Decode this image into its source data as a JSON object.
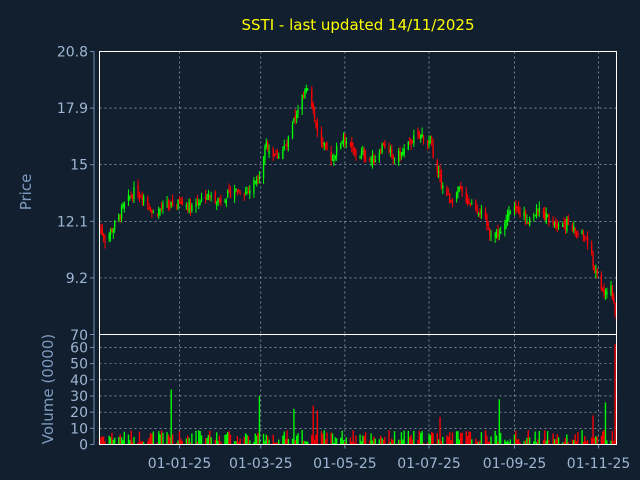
{
  "chart_data": [
    {
      "type": "candlestick",
      "title": "SSTI - last updated 14/11/2025",
      "xlabel": "",
      "ylabel": "Price",
      "ylim": [
        6.3,
        20.8
      ],
      "yticks": [
        6.3,
        9.2,
        12.1,
        15,
        17.9,
        20.8
      ],
      "ytick_labels": [
        "",
        "9.2",
        "12.1",
        "15",
        "17.9",
        "20.8"
      ],
      "xlim": [
        "2024-11-04",
        "2025-11-14"
      ],
      "xticks": [
        "2025-01-01",
        "2025-03-01",
        "2025-05-01",
        "2025-07-01",
        "2025-09-01",
        "2025-11-01"
      ],
      "xtick_labels": [
        "01-01-25",
        "01-03-25",
        "01-05-25",
        "01-07-25",
        "01-09-25",
        "01-11-25"
      ],
      "grid": true,
      "colors": {
        "up": "#00ff00",
        "down": "#ff0000",
        "grid": "#b8c8dc",
        "frame": "#ffffff",
        "title": "#ffff00",
        "axis_text": "#7f9cc0"
      },
      "close_anchors": [
        [
          "2024-11-04",
          11.8
        ],
        [
          "2024-11-08",
          11.2
        ],
        [
          "2024-11-15",
          11.9
        ],
        [
          "2024-11-22",
          12.9
        ],
        [
          "2024-11-29",
          13.6
        ],
        [
          "2024-12-06",
          13.4
        ],
        [
          "2024-12-13",
          12.5
        ],
        [
          "2024-12-20",
          12.8
        ],
        [
          "2025-01-01",
          13.0
        ],
        [
          "2025-01-10",
          12.9
        ],
        [
          "2025-01-20",
          13.4
        ],
        [
          "2025-01-31",
          13.2
        ],
        [
          "2025-02-10",
          13.7
        ],
        [
          "2025-02-20",
          13.6
        ],
        [
          "2025-02-28",
          14.6
        ],
        [
          "2025-03-05",
          16.0
        ],
        [
          "2025-03-12",
          15.4
        ],
        [
          "2025-03-20",
          16.0
        ],
        [
          "2025-03-28",
          17.9
        ],
        [
          "2025-04-03",
          19.1
        ],
        [
          "2025-04-09",
          17.3
        ],
        [
          "2025-04-15",
          16.0
        ],
        [
          "2025-04-22",
          15.3
        ],
        [
          "2025-04-30",
          16.5
        ],
        [
          "2025-05-07",
          15.6
        ],
        [
          "2025-05-15",
          15.5
        ],
        [
          "2025-05-22",
          15.2
        ],
        [
          "2025-05-29",
          16.1
        ],
        [
          "2025-06-05",
          15.3
        ],
        [
          "2025-06-12",
          15.6
        ],
        [
          "2025-06-19",
          16.3
        ],
        [
          "2025-06-26",
          16.5
        ],
        [
          "2025-07-03",
          15.9
        ],
        [
          "2025-07-10",
          14.0
        ],
        [
          "2025-07-16",
          13.2
        ],
        [
          "2025-07-23",
          13.7
        ],
        [
          "2025-07-30",
          13.1
        ],
        [
          "2025-08-07",
          12.6
        ],
        [
          "2025-08-14",
          11.6
        ],
        [
          "2025-08-21",
          11.4
        ],
        [
          "2025-08-28",
          12.5
        ],
        [
          "2025-09-04",
          12.7
        ],
        [
          "2025-09-11",
          12.2
        ],
        [
          "2025-09-18",
          12.6
        ],
        [
          "2025-09-25",
          12.3
        ],
        [
          "2025-10-02",
          12.0
        ],
        [
          "2025-10-09",
          12.0
        ],
        [
          "2025-10-16",
          11.5
        ],
        [
          "2025-10-23",
          11.2
        ],
        [
          "2025-10-30",
          9.5
        ],
        [
          "2025-11-05",
          8.5
        ],
        [
          "2025-11-10",
          8.8
        ],
        [
          "2025-11-14",
          6.8
        ]
      ]
    },
    {
      "type": "bar",
      "title": "",
      "xlabel": "",
      "ylabel": "Volume (0000)",
      "ylim": [
        0,
        68
      ],
      "yticks": [
        0,
        10,
        20,
        30,
        40,
        50,
        60
      ],
      "ytick_labels": [
        "0",
        "10",
        "20",
        "30",
        "40",
        "50",
        "60"
      ],
      "xlim": [
        "2024-11-04",
        "2025-11-14"
      ],
      "grid": true,
      "typical_volume": 5,
      "spikes": [
        [
          "2024-12-26",
          34
        ],
        [
          "2025-02-28",
          30
        ],
        [
          "2025-03-25",
          22
        ],
        [
          "2025-04-08",
          24
        ],
        [
          "2025-04-11",
          21
        ],
        [
          "2025-07-09",
          17
        ],
        [
          "2025-08-21",
          28
        ],
        [
          "2025-10-28",
          18
        ],
        [
          "2025-11-06",
          26
        ],
        [
          "2025-11-13",
          62
        ],
        [
          "2025-11-14",
          30
        ]
      ]
    }
  ]
}
